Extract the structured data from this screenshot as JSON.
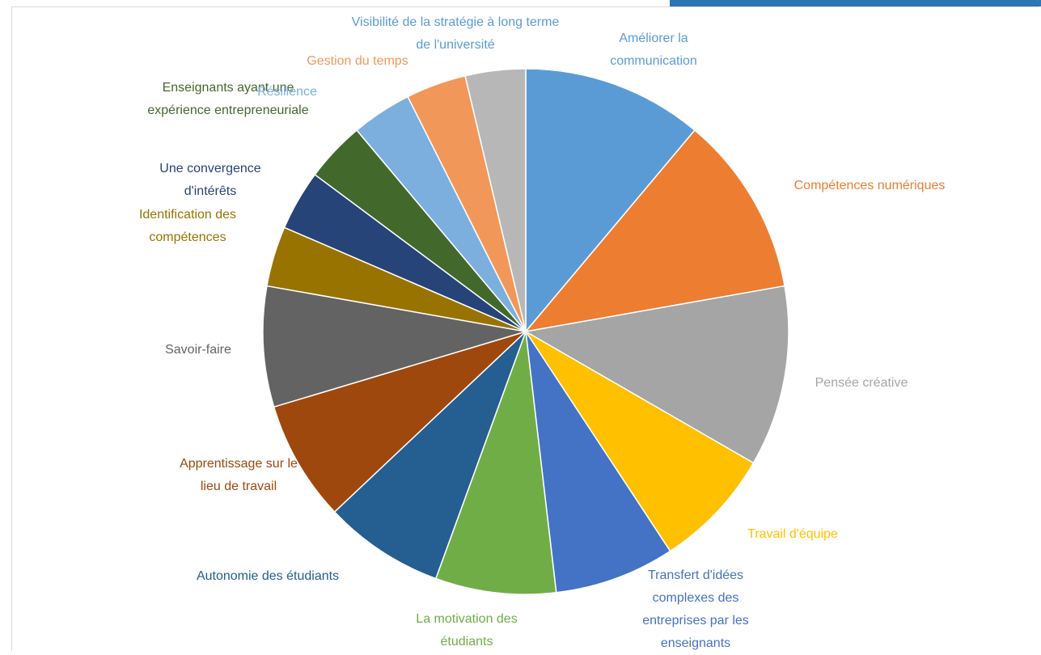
{
  "chart_data": {
    "type": "pie",
    "categories": [
      "Améliorer la communication",
      "Compétences numériques",
      "Pensée créative",
      "Travail d'équipe",
      "Transfert d'idées complexes des entreprises par les enseignants",
      "La motivation des étudiants",
      "Autonomie des étudiants",
      "Apprentissage sur le lieu de travail",
      "Savoir-faire",
      "Identification des compétences",
      "Une convergence d'intérêts",
      "Enseignants ayant une expérience entrepreneuriale",
      "Résilience",
      "Gestion du temps",
      "Visibilité de la stratégie à long terme de l'université"
    ],
    "values": [
      3,
      3,
      3,
      2,
      2,
      2,
      2,
      2,
      2,
      1,
      1,
      1,
      1,
      1,
      1
    ],
    "colors": [
      "#5b9bd5",
      "#ed7d31",
      "#a5a5a5",
      "#ffc000",
      "#4472c4",
      "#70ad47",
      "#255e91",
      "#9e480e",
      "#636363",
      "#997300",
      "#264478",
      "#43682b",
      "#7cafdd",
      "#f1975a",
      "#b7b7b7"
    ]
  }
}
